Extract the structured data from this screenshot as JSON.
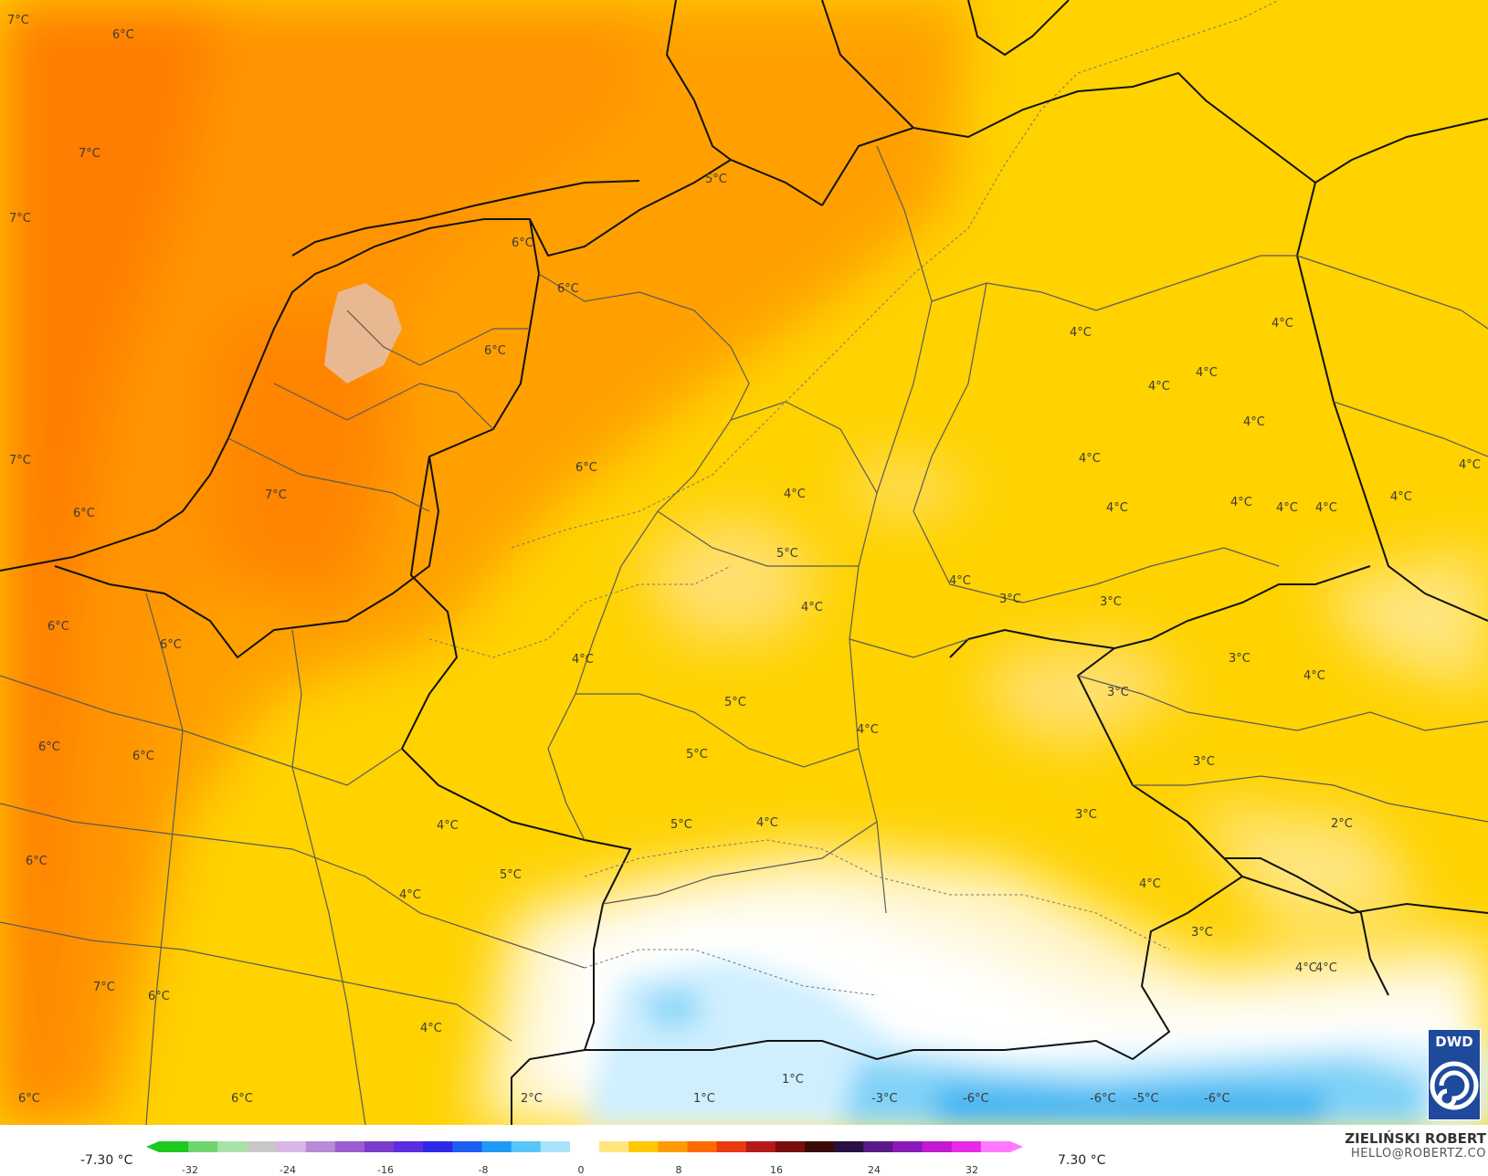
{
  "legend": {
    "min_label": "-7.30 °C",
    "max_label": "7.30 °C",
    "ticks": [
      "-32",
      "-24",
      "-16",
      "-8",
      "0",
      "8",
      "16",
      "24",
      "32"
    ],
    "colors": [
      "#1ec81e",
      "#6fd66f",
      "#a8e3a8",
      "#c8c8c8",
      "#d8b6e6",
      "#b98ad8",
      "#9a5ed0",
      "#7a3dcc",
      "#5a2de0",
      "#2f28e6",
      "#1d5ff0",
      "#1f9bf5",
      "#55c6f7",
      "#a8e3fb",
      "#ffffff",
      "#ffe680",
      "#ffc800",
      "#ff9a00",
      "#ff6a00",
      "#e83a10",
      "#b51a1a",
      "#7a0e0e",
      "#3a0a0a",
      "#281040",
      "#5a1a8a",
      "#8a1ab8",
      "#c21ad2",
      "#e82ae8",
      "#ff7aff"
    ]
  },
  "author": {
    "name": "ZIELIŃSKI ROBERT",
    "email": "HELLO@ROBERTZ.CO"
  },
  "logo": {
    "text": "DWD",
    "icon": "dwd-swirl-icon"
  },
  "labels": [
    {
      "text": "7°C"
    },
    {
      "text": "6°C"
    },
    {
      "text": "7°C"
    },
    {
      "text": "7°C"
    },
    {
      "text": "7°C"
    },
    {
      "text": "6°C"
    },
    {
      "text": "7°C"
    },
    {
      "text": "6°C"
    },
    {
      "text": "6°C"
    },
    {
      "text": "6°C"
    },
    {
      "text": "6°C"
    },
    {
      "text": "6°C"
    },
    {
      "text": "6°C"
    },
    {
      "text": "6°C"
    },
    {
      "text": "6°C"
    },
    {
      "text": "6°C"
    },
    {
      "text": "7°C"
    },
    {
      "text": "5°C"
    },
    {
      "text": "6°C"
    },
    {
      "text": "6°C"
    },
    {
      "text": "6°C"
    },
    {
      "text": "4°C"
    },
    {
      "text": "4°C"
    },
    {
      "text": "4°C"
    },
    {
      "text": "4°C"
    },
    {
      "text": "5°C"
    },
    {
      "text": "4°C"
    },
    {
      "text": "5°C"
    },
    {
      "text": "5°C"
    },
    {
      "text": "4°C"
    },
    {
      "text": "4°C"
    },
    {
      "text": "5°C"
    },
    {
      "text": "4°C"
    },
    {
      "text": "5°C"
    },
    {
      "text": "4°C"
    },
    {
      "text": "4°C"
    },
    {
      "text": "4°C"
    },
    {
      "text": "4°C"
    },
    {
      "text": "4°C"
    },
    {
      "text": "4°C"
    },
    {
      "text": "4°C"
    },
    {
      "text": "4°C"
    },
    {
      "text": "4°C"
    },
    {
      "text": "4°C"
    },
    {
      "text": "4°C"
    },
    {
      "text": "4°C"
    },
    {
      "text": "4°C"
    },
    {
      "text": "3°C"
    },
    {
      "text": "3°C"
    },
    {
      "text": "3°C"
    },
    {
      "text": "3°C"
    },
    {
      "text": "3°C"
    },
    {
      "text": "3°C"
    },
    {
      "text": "4°C"
    },
    {
      "text": "4°C"
    },
    {
      "text": "2°C"
    },
    {
      "text": "3°C"
    },
    {
      "text": "4°C"
    },
    {
      "text": "4°C"
    },
    {
      "text": "1°C"
    },
    {
      "text": "1°C"
    },
    {
      "text": "2°C"
    },
    {
      "text": "-3°C"
    },
    {
      "text": "-6°C"
    },
    {
      "text": "-6°C"
    },
    {
      "text": "-5°C"
    },
    {
      "text": "-6°C"
    }
  ]
}
